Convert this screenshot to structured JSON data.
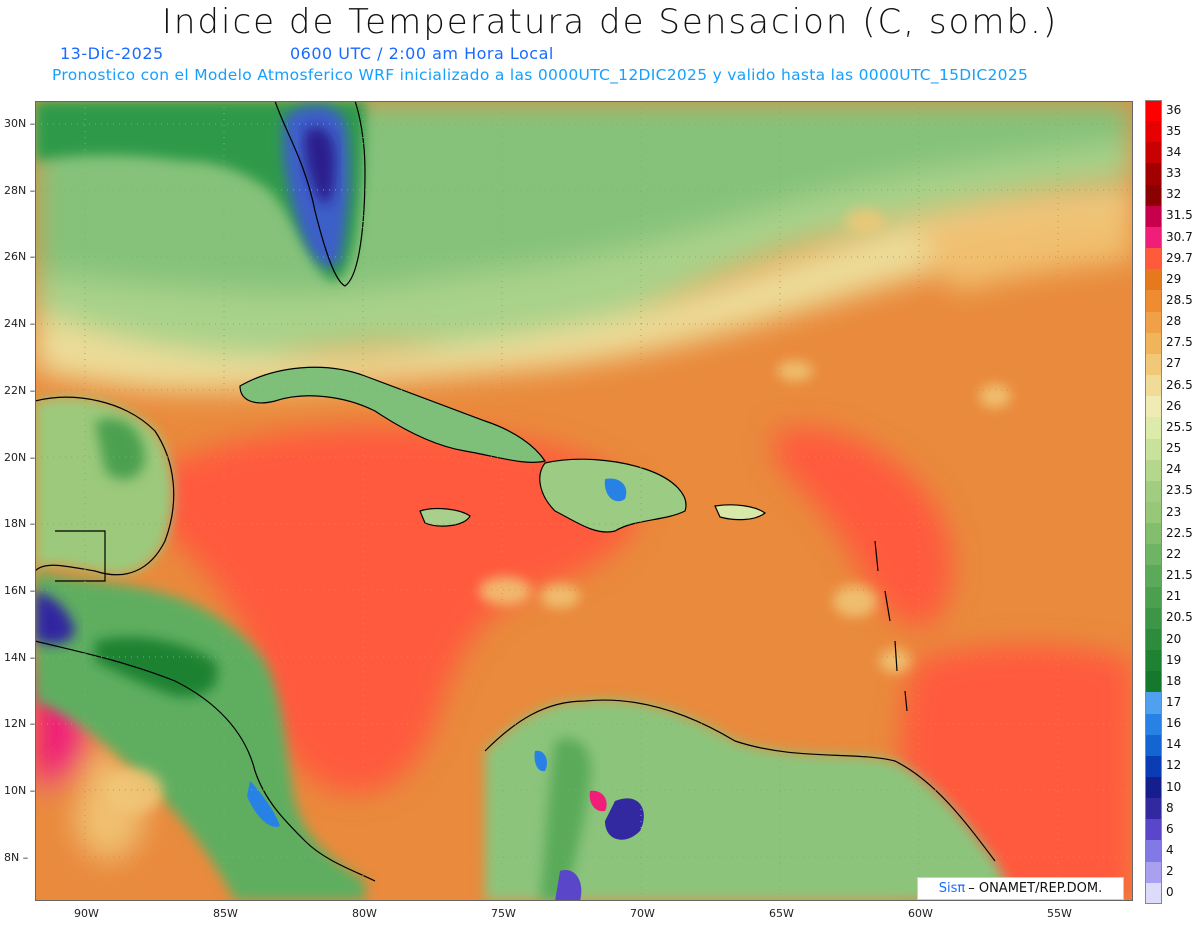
{
  "header": {
    "title": "Indice de Temperatura de Sensacion (C, somb.)",
    "date": "13-Dic-2025",
    "time": "0600 UTC / 2:00 am Hora Local",
    "model_line": "Pronostico con el Modelo Atmosferico WRF inicializado a las 0000UTC_12DIC2025 y valido hasta las  0000UTC_15DIC2025"
  },
  "axes": {
    "lat_labels": [
      "30N",
      "28N",
      "26N",
      "24N",
      "22N",
      "20N",
      "18N",
      "16N",
      "14N",
      "12N",
      "10N",
      "8N"
    ],
    "lon_labels": [
      "90W",
      "85W",
      "80W",
      "75W",
      "70W",
      "65W",
      "60W",
      "55W"
    ]
  },
  "colorbar": {
    "levels": [
      "36",
      "35",
      "34",
      "33",
      "32",
      "31.5",
      "30.7",
      "29.7",
      "29",
      "28.5",
      "28",
      "27.5",
      "27",
      "26.5",
      "26",
      "25.5",
      "25",
      "24",
      "23.5",
      "23",
      "22.5",
      "22",
      "21.5",
      "21",
      "20.5",
      "20",
      "19",
      "18",
      "17",
      "16",
      "14",
      "12",
      "10",
      "8",
      "6",
      "4",
      "2",
      "0"
    ],
    "colors": [
      "#ff0000",
      "#e60000",
      "#c80000",
      "#a00000",
      "#8b0000",
      "#c8004b",
      "#f01e78",
      "#ff5a3c",
      "#e6781e",
      "#ee8c32",
      "#f0a046",
      "#f0b45a",
      "#f0c878",
      "#f0dc96",
      "#f0ebb4",
      "#dcebaa",
      "#c8e19b",
      "#b4d78c",
      "#a0cd82",
      "#96c878",
      "#82be6e",
      "#6eb464",
      "#5aaa5a",
      "#4ba050",
      "#3c9646",
      "#2d8c3c",
      "#1e8232",
      "#14782d",
      "#50a0f0",
      "#2882e6",
      "#1464d2",
      "#0a3cb4",
      "#141e8c",
      "#3228a0",
      "#5a46c8",
      "#8278e6",
      "#aaa0f0",
      "#dcdcfa"
    ]
  },
  "credit": {
    "brand": "Sisπ",
    "text": "– ONAMET/REP.DOM."
  }
}
